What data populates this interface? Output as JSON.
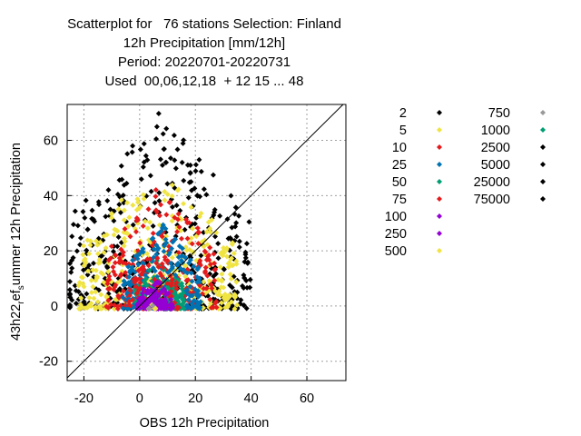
{
  "title_lines": [
    "Scatterplot for   76 stations Selection: Finland",
    "12h Precipitation [mm/12h]",
    "Period: 20220701-20220731",
    "Used  00,06,12,18  + 12 15 ... 48"
  ],
  "chart_data": {
    "type": "scatter",
    "xlabel": "OBS 12h Precipitation",
    "ylabel_main": "43h22",
    "ylabel_sub1": "r",
    "ylabel_mid": "ef",
    "ylabel_sub2": "s",
    "ylabel_tail": "ummer 12h Precipitation",
    "xlim": [
      -26,
      74
    ],
    "ylim": [
      -27,
      73
    ],
    "xticks": [
      -20,
      0,
      20,
      40,
      60
    ],
    "yticks": [
      -20,
      0,
      20,
      40,
      60
    ],
    "grid": true,
    "diagonal": true,
    "legend_placement": "right",
    "series": [
      {
        "name": "2",
        "color": "#000000"
      },
      {
        "name": "5",
        "color": "#f0e442"
      },
      {
        "name": "10",
        "color": "#e41a1c"
      },
      {
        "name": "25",
        "color": "#0072b2"
      },
      {
        "name": "50",
        "color": "#009e73"
      },
      {
        "name": "75",
        "color": "#e41a1c"
      },
      {
        "name": "100",
        "color": "#9400d3"
      },
      {
        "name": "250",
        "color": "#9400d3"
      },
      {
        "name": "500",
        "color": "#f0e442"
      },
      {
        "name": "750",
        "color": "#999999"
      },
      {
        "name": "1000",
        "color": "#009e73"
      },
      {
        "name": "2500",
        "color": "#000000"
      },
      {
        "name": "5000",
        "color": "#000000"
      },
      {
        "name": "25000",
        "color": "#000000"
      },
      {
        "name": "75000",
        "color": "#000000"
      }
    ],
    "clusters": [
      {
        "series": "2",
        "xmin": -26,
        "xmax": 40,
        "ymin": -1,
        "ymax": 71,
        "density": 420
      },
      {
        "series": "5",
        "xmin": -22,
        "xmax": 35,
        "ymin": -1,
        "ymax": 52,
        "density": 360
      },
      {
        "series": "10",
        "xmin": -12,
        "xmax": 28,
        "ymin": -1,
        "ymax": 45,
        "density": 220
      },
      {
        "series": "25",
        "xmin": -6,
        "xmax": 22,
        "ymin": -1,
        "ymax": 30,
        "density": 220
      },
      {
        "series": "50",
        "xmin": -2,
        "xmax": 16,
        "ymin": -1,
        "ymax": 18,
        "density": 120
      },
      {
        "series": "75",
        "xmin": -4,
        "xmax": 14,
        "ymin": -1,
        "ymax": 20,
        "density": 70
      },
      {
        "series": "100",
        "xmin": -1,
        "xmax": 12,
        "ymin": -1,
        "ymax": 10,
        "density": 90
      },
      {
        "series": "250",
        "xmin": 2,
        "xmax": 9,
        "ymin": -1,
        "ymax": 5,
        "density": 30
      },
      {
        "series": "500",
        "xmin": 3,
        "xmax": 6,
        "ymin": -1,
        "ymax": 2,
        "density": 6
      },
      {
        "series": "750",
        "xmin": 3,
        "xmax": 5,
        "ymin": -1,
        "ymax": 1,
        "density": 3
      }
    ]
  }
}
